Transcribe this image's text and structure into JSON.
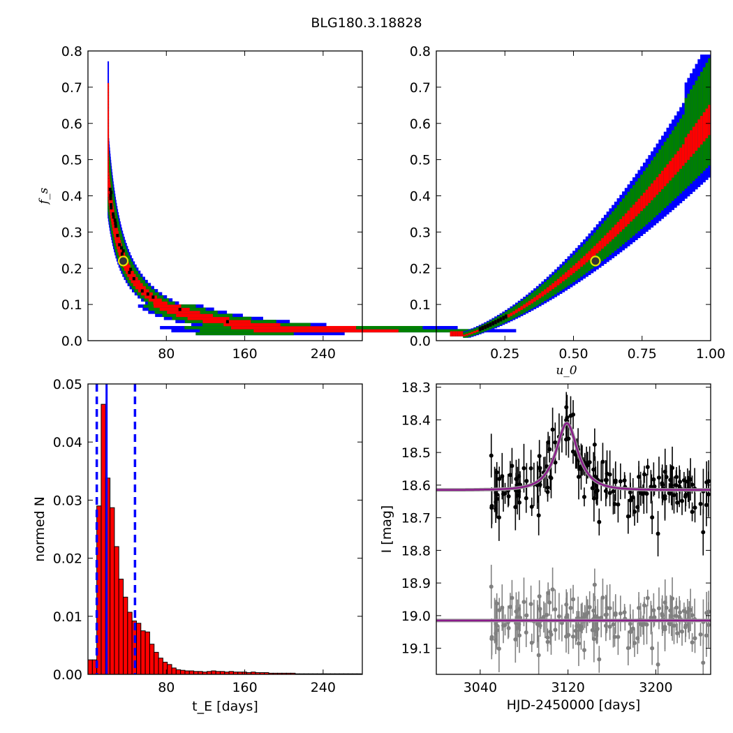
{
  "title": "BLG180.3.18828",
  "chart_data": [
    {
      "type": "heatmap",
      "panel": "top-left",
      "xlabel": "",
      "ylabel": "f_s",
      "xlim": [
        0,
        280
      ],
      "ylim": [
        0.0,
        0.8
      ],
      "xticks": [
        "80",
        "160",
        "240"
      ],
      "yticks": [
        "0.0",
        "0.1",
        "0.2",
        "0.3",
        "0.4",
        "0.5",
        "0.6",
        "0.7",
        "0.8"
      ],
      "confidence_colors": {
        "outer": "#0000ff",
        "middle": "#008000",
        "inner": "#ff0000",
        "peak": "#000000"
      },
      "best_fit": {
        "x": 36,
        "y": 0.22
      },
      "ridge": [
        [
          22,
          0.77
        ],
        [
          24,
          0.7
        ],
        [
          26,
          0.6
        ],
        [
          28,
          0.5
        ],
        [
          30,
          0.42
        ],
        [
          33,
          0.33
        ],
        [
          36,
          0.26
        ],
        [
          40,
          0.2
        ],
        [
          46,
          0.15
        ],
        [
          54,
          0.11
        ],
        [
          64,
          0.08
        ],
        [
          76,
          0.06
        ],
        [
          92,
          0.04
        ],
        [
          110,
          0.03
        ],
        [
          140,
          0.02
        ],
        [
          200,
          0.015
        ],
        [
          262,
          0.015
        ]
      ]
    },
    {
      "type": "heatmap",
      "panel": "top-right",
      "xlabel": "u_0",
      "ylabel": "",
      "xlim": [
        0.0,
        1.0
      ],
      "ylim": [
        0.0,
        0.8
      ],
      "xticks": [
        "0.25",
        "0.50",
        "0.75",
        "1.00"
      ],
      "yticks": [
        "0.0",
        "0.1",
        "0.2",
        "0.3",
        "0.4",
        "0.5",
        "0.6",
        "0.7",
        "0.8"
      ],
      "best_fit": {
        "x": 0.58,
        "y": 0.22
      },
      "ridge": [
        [
          0.06,
          0.015
        ],
        [
          0.15,
          0.04
        ],
        [
          0.25,
          0.075
        ],
        [
          0.35,
          0.12
        ],
        [
          0.45,
          0.165
        ],
        [
          0.55,
          0.215
        ],
        [
          0.65,
          0.28
        ],
        [
          0.75,
          0.36
        ],
        [
          0.85,
          0.44
        ],
        [
          0.92,
          0.52
        ],
        [
          1.0,
          0.6
        ]
      ]
    },
    {
      "type": "bar",
      "panel": "bottom-left",
      "xlabel": "t_E [days]",
      "ylabel": "normed N",
      "xlim": [
        0,
        280
      ],
      "ylim": [
        0.0,
        0.05
      ],
      "xticks": [
        "80",
        "160",
        "240"
      ],
      "yticks": [
        "0.00",
        "0.01",
        "0.02",
        "0.03",
        "0.04",
        "0.05"
      ],
      "bin_width": 4.5,
      "bin_start": 0,
      "values": [
        0.0025,
        0.0025,
        0.029,
        0.0465,
        0.0338,
        0.0287,
        0.022,
        0.0164,
        0.0133,
        0.0107,
        0.0092,
        0.0088,
        0.0075,
        0.0073,
        0.0052,
        0.0038,
        0.0028,
        0.0021,
        0.0017,
        0.0011,
        0.0008,
        0.0007,
        0.0006,
        0.0006,
        0.0005,
        0.0005,
        0.0004,
        0.0005,
        0.0006,
        0.0005,
        0.0005,
        0.0004,
        0.0005,
        0.0004,
        0.0004,
        0.0004,
        0.0003,
        0.0004,
        0.0003,
        0.0003,
        0.0003,
        0.0002,
        0.0002,
        0.0002,
        0.0002,
        0.0002,
        0.0002,
        0.0001,
        0.0001,
        0.0001,
        0.0001,
        0.0001,
        0.0001,
        0.0001,
        0.0001,
        0.0001,
        0.0001,
        0.0001,
        0.0001,
        0.0001,
        0.0001,
        0.0001
      ],
      "bar_color": "#ff0000",
      "median_line": 19,
      "bound_lines": [
        9,
        48
      ]
    },
    {
      "type": "scatter",
      "panel": "bottom-right",
      "xlabel": "HJD-2450000 [days]",
      "ylabel": "I [mag]",
      "xlim": [
        3000,
        3250
      ],
      "ylim": [
        19.18,
        18.29
      ],
      "xticks": [
        "3040",
        "3120",
        "3200"
      ],
      "yticks": [
        "18.3",
        "18.4",
        "18.5",
        "18.6",
        "18.7",
        "18.8",
        "18.9",
        "19.0",
        "19.1"
      ],
      "model": {
        "baseline": 18.615,
        "peak": 18.41,
        "t0": 3119,
        "tE": 18,
        "color": "#8b1a8b"
      },
      "residual_baseline": 19.015,
      "data_color": "#000000",
      "residual_color": "#808080"
    }
  ]
}
